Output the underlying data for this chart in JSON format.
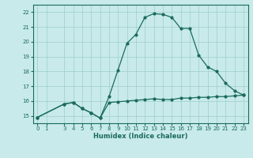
{
  "xlabel": "Humidex (Indice chaleur)",
  "x_upper": [
    0,
    3,
    4,
    5,
    6,
    7,
    8,
    9,
    10,
    11,
    12,
    13,
    14,
    15,
    16,
    17,
    18,
    19,
    20,
    21,
    22,
    23
  ],
  "y_upper": [
    14.9,
    15.8,
    15.9,
    15.5,
    15.2,
    14.85,
    16.3,
    18.1,
    19.9,
    20.5,
    21.65,
    21.9,
    21.85,
    21.65,
    20.9,
    20.9,
    19.1,
    18.3,
    18.0,
    17.2,
    16.7,
    16.4
  ],
  "x_lower": [
    0,
    3,
    4,
    5,
    6,
    7,
    8,
    9,
    10,
    11,
    12,
    13,
    14,
    15,
    16,
    17,
    18,
    19,
    20,
    21,
    22,
    23
  ],
  "y_lower": [
    14.9,
    15.8,
    15.9,
    15.5,
    15.2,
    14.85,
    15.9,
    15.95,
    16.0,
    16.05,
    16.1,
    16.15,
    16.1,
    16.1,
    16.2,
    16.2,
    16.25,
    16.25,
    16.3,
    16.3,
    16.35,
    16.4
  ],
  "line_color": "#1a6b5a",
  "bg_color": "#c8eaea",
  "grid_color": "#a0cccc",
  "ylim": [
    14.5,
    22.5
  ],
  "xlim": [
    -0.5,
    23.5
  ],
  "yticks": [
    15,
    16,
    17,
    18,
    19,
    20,
    21,
    22
  ],
  "xticks": [
    0,
    1,
    3,
    4,
    5,
    6,
    7,
    8,
    9,
    10,
    11,
    12,
    13,
    14,
    15,
    16,
    17,
    18,
    19,
    20,
    21,
    22,
    23
  ],
  "tick_fontsize": 5.0,
  "xlabel_fontsize": 6.0
}
